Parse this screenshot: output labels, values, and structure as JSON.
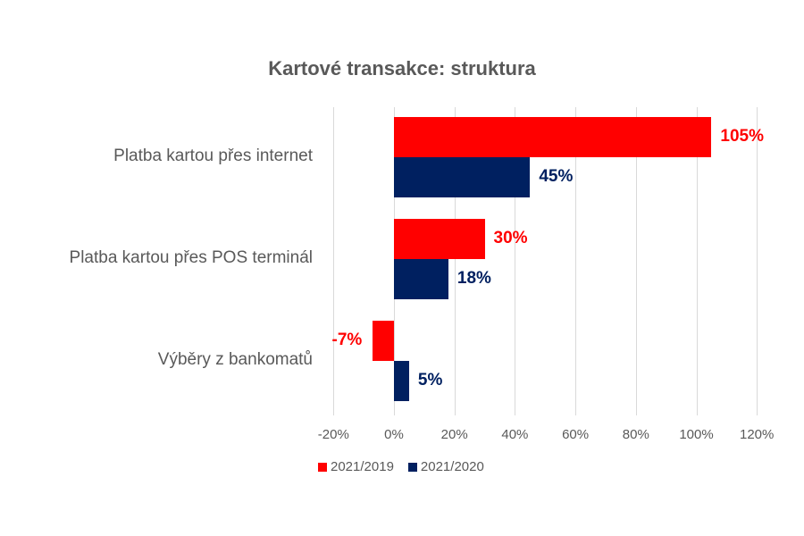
{
  "chart_data": {
    "type": "bar",
    "orientation": "horizontal",
    "title": "Kartové transakce: struktura",
    "categories": [
      "Platba kartou přes internet",
      "Platba kartou přes POS terminál",
      "Výběry z bankomatů"
    ],
    "series": [
      {
        "name": "2021/2019",
        "color": "#FF0000",
        "values": [
          105,
          30,
          -7
        ],
        "labels": [
          "105%",
          "30%",
          "-7%"
        ]
      },
      {
        "name": "2021/2020",
        "color": "#002060",
        "values": [
          45,
          18,
          5
        ],
        "labels": [
          "45%",
          "18%",
          "5%"
        ]
      }
    ],
    "xlabel": "",
    "ylabel": "",
    "xlim": [
      -20,
      120
    ],
    "xticks": [
      "-20%",
      "0%",
      "20%",
      "40%",
      "60%",
      "80%",
      "100%",
      "120%"
    ],
    "grid": true,
    "legend_position": "bottom"
  }
}
